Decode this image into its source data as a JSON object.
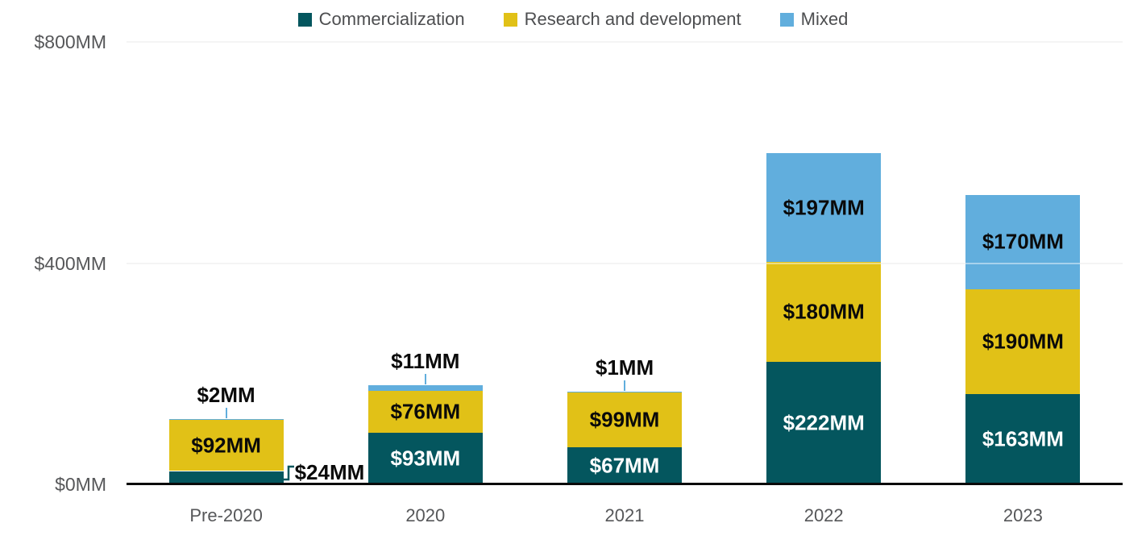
{
  "chart_data": {
    "type": "bar",
    "stacked": true,
    "title": "",
    "xlabel": "",
    "ylabel": "",
    "categories": [
      "Pre-2020",
      "2020",
      "2021",
      "2022",
      "2023"
    ],
    "series": [
      {
        "name": "Commercialization",
        "color": "#04565E",
        "label_text_color": "#ffffff",
        "values": [
          24,
          93,
          67,
          222,
          163
        ]
      },
      {
        "name": "Research and development",
        "color": "#E1C117",
        "label_text_color": "#0a0a0a",
        "values": [
          92,
          76,
          99,
          180,
          190
        ]
      },
      {
        "name": "Mixed",
        "color": "#61AEDD",
        "label_text_color": "#0a0a0a",
        "values": [
          2,
          11,
          1,
          197,
          170
        ]
      }
    ],
    "value_prefix": "$",
    "value_suffix": "MM",
    "ylim": [
      0,
      800
    ],
    "yticks": [
      "$0MM",
      "$400MM",
      "$800MM"
    ],
    "grid": "horizontal",
    "legend_position": "top",
    "outside_labels": [
      "$24MM",
      "$2MM",
      "$11MM",
      "$1MM"
    ]
  },
  "colors": {
    "background": "#ffffff",
    "axis_line": "#0a0a0a",
    "gridline": "#ebebeb",
    "axis_text": "#565759",
    "legend_text": "#4d4e50"
  }
}
